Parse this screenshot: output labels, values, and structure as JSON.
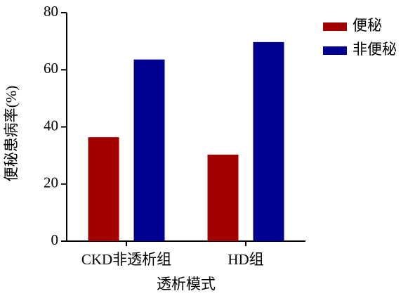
{
  "chart_data": {
    "type": "bar",
    "x_label": "透析模式",
    "y_label": "便秘患病率(%)",
    "categories": [
      "CKD非透析组",
      "HD组"
    ],
    "series": [
      {
        "name": "便秘",
        "color": "#a00000",
        "values": [
          36.4,
          30.3
        ]
      },
      {
        "name": "非便秘",
        "color": "#000090",
        "values": [
          63.6,
          69.7
        ]
      }
    ],
    "ylim": [
      0,
      80
    ],
    "yticks": [
      0,
      20,
      40,
      60,
      80
    ],
    "legend": "upper right"
  }
}
